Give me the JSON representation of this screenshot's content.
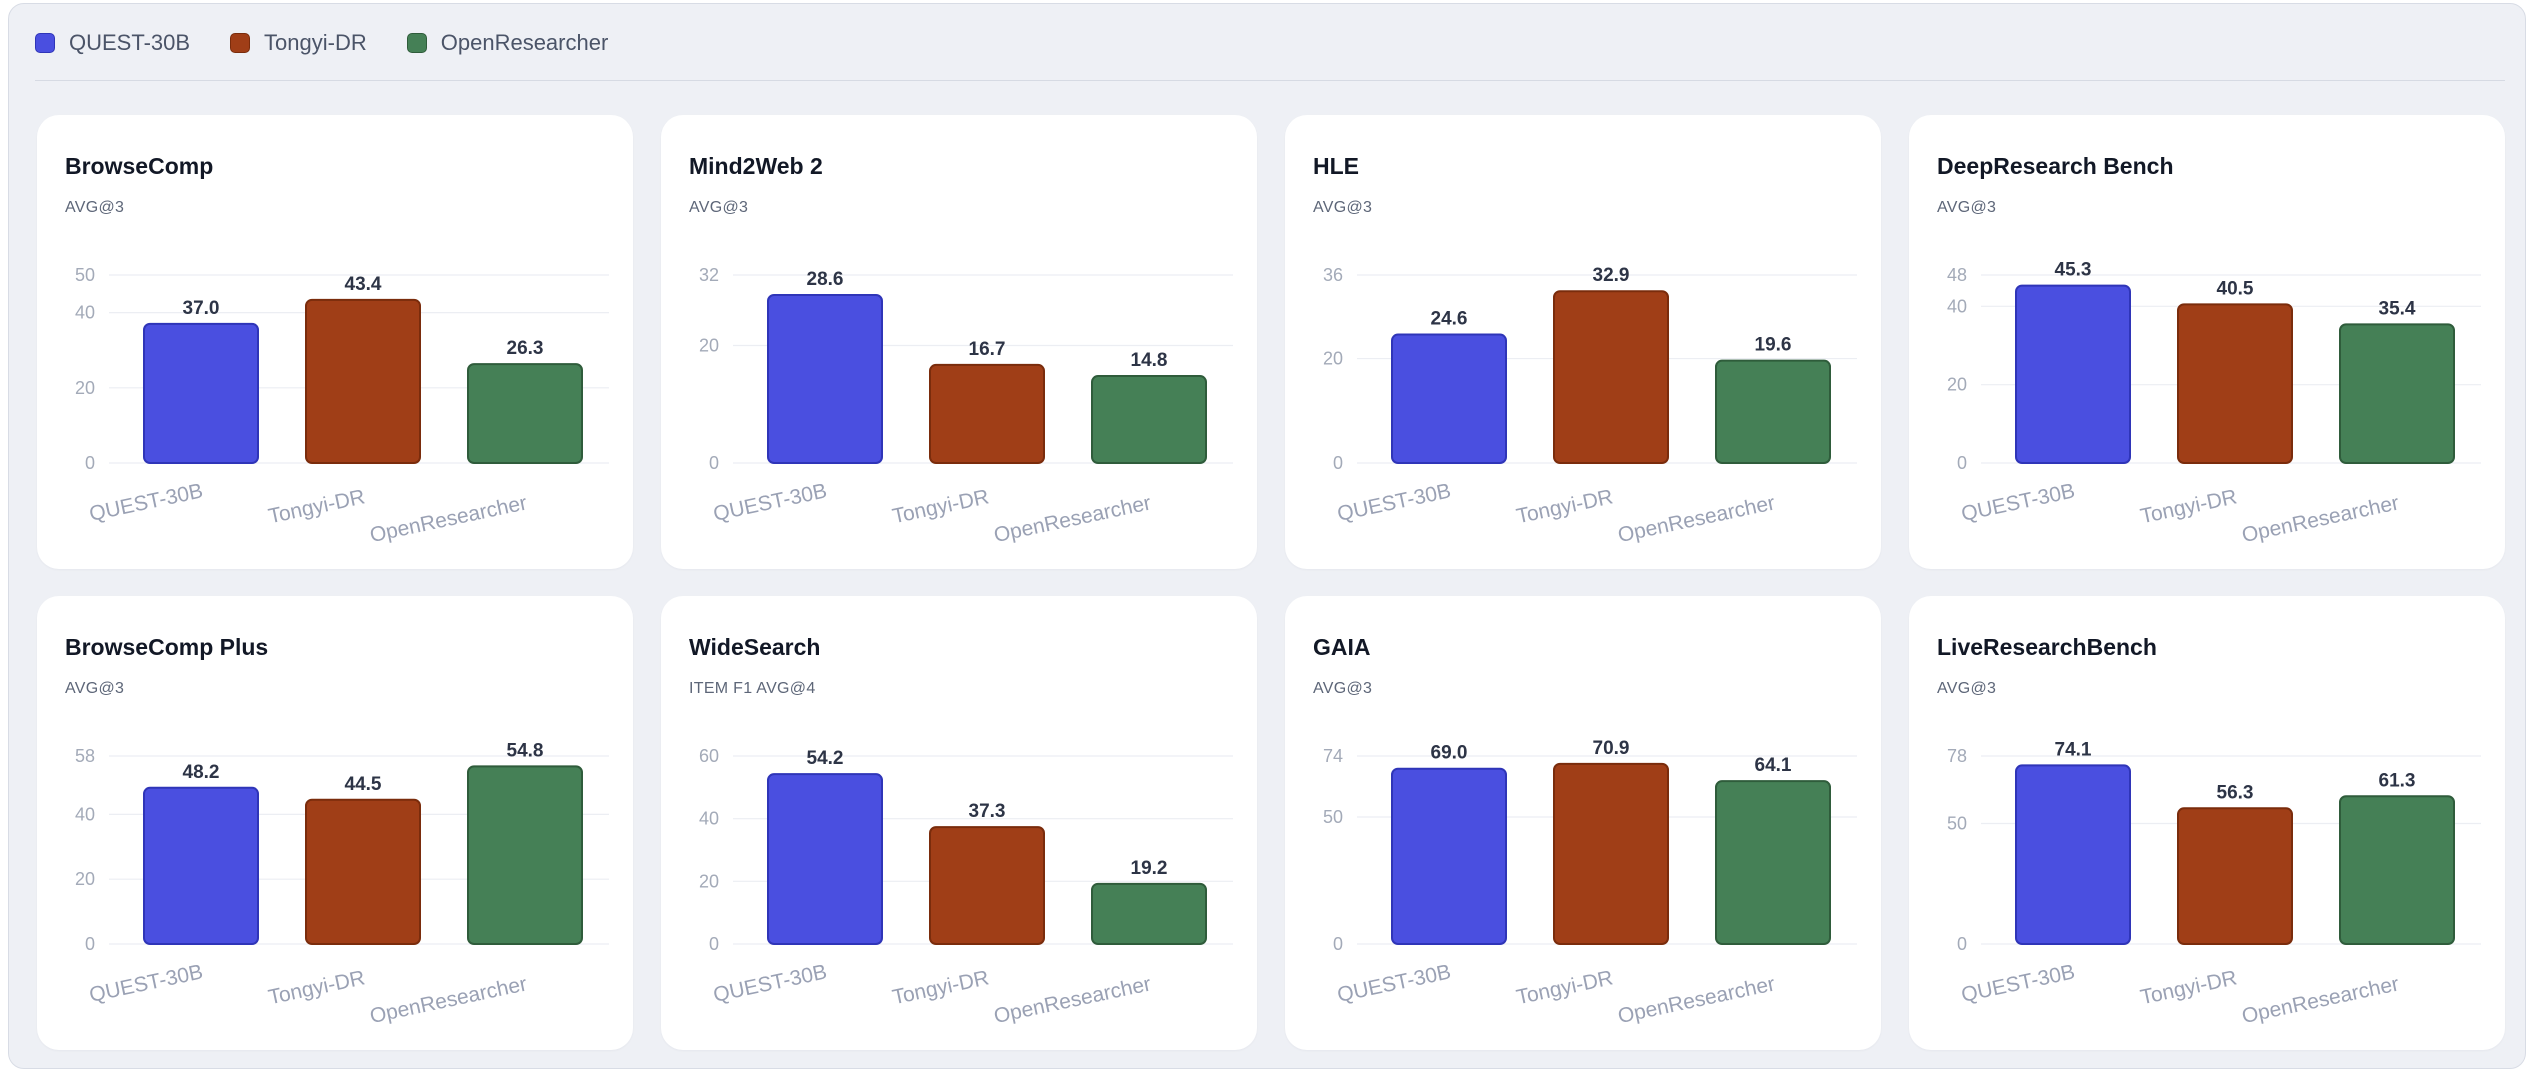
{
  "legend": [
    {
      "label": "QUEST-30B",
      "color": "#4a4fe0",
      "border": "#2f35b8"
    },
    {
      "label": "Tongyi-DR",
      "color": "#a03e17",
      "border": "#7a2c0c"
    },
    {
      "label": "OpenResearcher",
      "color": "#458056",
      "border": "#2f5c3b"
    }
  ],
  "chart_data": [
    {
      "type": "bar",
      "title": "BrowseComp",
      "subtitle": "AVG@3",
      "categories": [
        "QUEST-30B",
        "Tongyi-DR",
        "OpenResearcher"
      ],
      "values": [
        37.0,
        43.4,
        26.3
      ],
      "value_labels": [
        "37.0",
        "43.4",
        "26.3"
      ],
      "ylim": [
        0,
        50
      ],
      "yticks": [
        0,
        20,
        40,
        50
      ],
      "grid": true
    },
    {
      "type": "bar",
      "title": "Mind2Web 2",
      "subtitle": "AVG@3",
      "categories": [
        "QUEST-30B",
        "Tongyi-DR",
        "OpenResearcher"
      ],
      "values": [
        28.6,
        16.7,
        14.8
      ],
      "value_labels": [
        "28.6",
        "16.7",
        "14.8"
      ],
      "ylim": [
        0,
        32
      ],
      "yticks": [
        0,
        20,
        32
      ],
      "grid": true
    },
    {
      "type": "bar",
      "title": "HLE",
      "subtitle": "AVG@3",
      "categories": [
        "QUEST-30B",
        "Tongyi-DR",
        "OpenResearcher"
      ],
      "values": [
        24.6,
        32.9,
        19.6
      ],
      "value_labels": [
        "24.6",
        "32.9",
        "19.6"
      ],
      "ylim": [
        0,
        36
      ],
      "yticks": [
        0,
        20,
        36
      ],
      "grid": true
    },
    {
      "type": "bar",
      "title": "DeepResearch Bench",
      "subtitle": "AVG@3",
      "categories": [
        "QUEST-30B",
        "Tongyi-DR",
        "OpenResearcher"
      ],
      "values": [
        45.3,
        40.5,
        35.4
      ],
      "value_labels": [
        "45.3",
        "40.5",
        "35.4"
      ],
      "ylim": [
        0,
        48
      ],
      "yticks": [
        0,
        20,
        40,
        48
      ],
      "grid": true
    },
    {
      "type": "bar",
      "title": "BrowseComp Plus",
      "subtitle": "AVG@3",
      "categories": [
        "QUEST-30B",
        "Tongyi-DR",
        "OpenResearcher"
      ],
      "values": [
        48.2,
        44.5,
        54.8
      ],
      "value_labels": [
        "48.2",
        "44.5",
        "54.8"
      ],
      "ylim": [
        0,
        58
      ],
      "yticks": [
        0,
        20,
        40,
        58
      ],
      "grid": true
    },
    {
      "type": "bar",
      "title": "WideSearch",
      "subtitle": "ITEM F1 AVG@4",
      "categories": [
        "QUEST-30B",
        "Tongyi-DR",
        "OpenResearcher"
      ],
      "values": [
        54.2,
        37.3,
        19.2
      ],
      "value_labels": [
        "54.2",
        "37.3",
        "19.2"
      ],
      "ylim": [
        0,
        60
      ],
      "yticks": [
        0,
        20,
        40,
        60
      ],
      "grid": true
    },
    {
      "type": "bar",
      "title": "GAIA",
      "subtitle": "AVG@3",
      "categories": [
        "QUEST-30B",
        "Tongyi-DR",
        "OpenResearcher"
      ],
      "values": [
        69.0,
        70.9,
        64.1
      ],
      "value_labels": [
        "69.0",
        "70.9",
        "64.1"
      ],
      "ylim": [
        0,
        74
      ],
      "yticks": [
        0,
        50,
        74
      ],
      "grid": true
    },
    {
      "type": "bar",
      "title": "LiveResearchBench",
      "subtitle": "AVG@3",
      "categories": [
        "QUEST-30B",
        "Tongyi-DR",
        "OpenResearcher"
      ],
      "values": [
        74.1,
        56.3,
        61.3
      ],
      "value_labels": [
        "74.1",
        "56.3",
        "61.3"
      ],
      "ylim": [
        0,
        78
      ],
      "yticks": [
        0,
        50,
        78
      ],
      "grid": true
    }
  ]
}
